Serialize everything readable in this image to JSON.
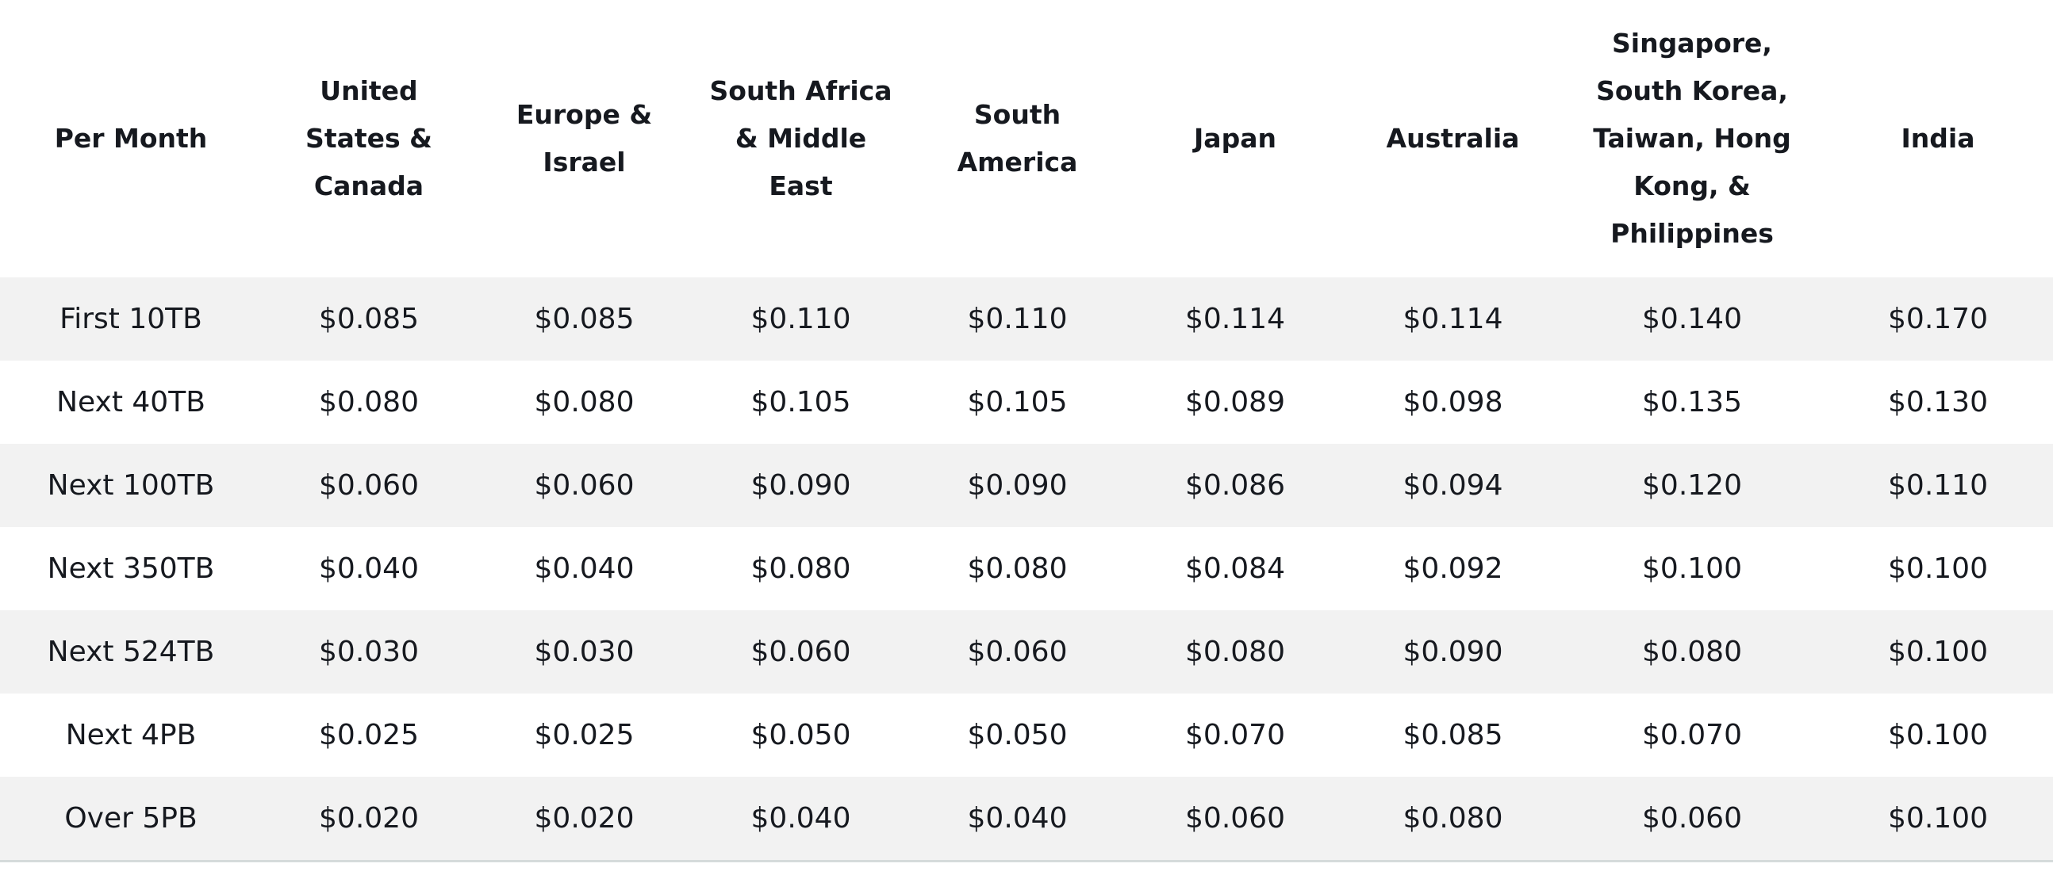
{
  "table": {
    "headers": [
      "Per Month",
      "United States & Canada",
      "Europe & Israel",
      "South Africa & Middle East",
      "South America",
      "Japan",
      "Australia",
      "Singapore, South Korea, Taiwan, Hong Kong, & Philippines",
      "India"
    ],
    "rows": [
      [
        "First 10TB",
        "$0.085",
        "$0.085",
        "$0.110",
        "$0.110",
        "$0.114",
        "$0.114",
        "$0.140",
        "$0.170"
      ],
      [
        "Next 40TB",
        "$0.080",
        "$0.080",
        "$0.105",
        "$0.105",
        "$0.089",
        "$0.098",
        "$0.135",
        "$0.130"
      ],
      [
        "Next 100TB",
        "$0.060",
        "$0.060",
        "$0.090",
        "$0.090",
        "$0.086",
        "$0.094",
        "$0.120",
        "$0.110"
      ],
      [
        "Next 350TB",
        "$0.040",
        "$0.040",
        "$0.080",
        "$0.080",
        "$0.084",
        "$0.092",
        "$0.100",
        "$0.100"
      ],
      [
        "Next 524TB",
        "$0.030",
        "$0.030",
        "$0.060",
        "$0.060",
        "$0.080",
        "$0.090",
        "$0.080",
        "$0.100"
      ],
      [
        "Next 4PB",
        "$0.025",
        "$0.025",
        "$0.050",
        "$0.050",
        "$0.070",
        "$0.085",
        "$0.070",
        "$0.100"
      ],
      [
        "Over 5PB",
        "$0.020",
        "$0.020",
        "$0.040",
        "$0.040",
        "$0.060",
        "$0.080",
        "$0.060",
        "$0.100"
      ]
    ]
  },
  "colors": {
    "text": "#16191f",
    "stripe": "#f2f2f2",
    "background": "#ffffff",
    "bottom_rule": "#d5dbdb"
  }
}
